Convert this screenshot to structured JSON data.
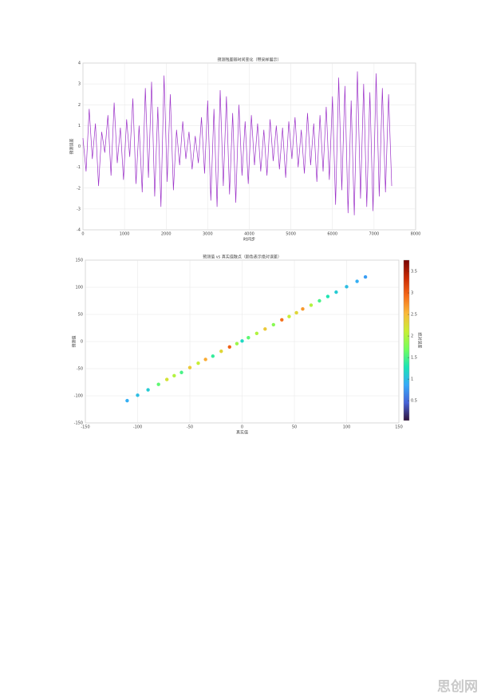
{
  "chart_data": [
    {
      "type": "line",
      "title": "预测残差随时间变化（带采样展示）",
      "xlabel": "时间步",
      "ylabel": "预测误差",
      "grid": true,
      "xlim": [
        0,
        8000
      ],
      "ylim": [
        -4,
        4
      ],
      "xticks": [
        0,
        1000,
        2000,
        3000,
        4000,
        5000,
        6000,
        7000,
        8000
      ],
      "yticks": [
        -4,
        -3,
        -2,
        -1,
        0,
        1,
        2,
        3,
        4
      ],
      "x": [
        0,
        75,
        150,
        225,
        300,
        375,
        450,
        525,
        600,
        675,
        750,
        825,
        900,
        975,
        1050,
        1125,
        1200,
        1275,
        1350,
        1425,
        1500,
        1575,
        1650,
        1725,
        1800,
        1875,
        1950,
        2025,
        2100,
        2175,
        2250,
        2325,
        2400,
        2475,
        2550,
        2625,
        2700,
        2775,
        2850,
        2925,
        3000,
        3075,
        3150,
        3225,
        3300,
        3375,
        3450,
        3525,
        3600,
        3675,
        3750,
        3825,
        3900,
        3975,
        4050,
        4125,
        4200,
        4275,
        4350,
        4425,
        4500,
        4575,
        4650,
        4725,
        4800,
        4875,
        4950,
        5025,
        5100,
        5175,
        5250,
        5325,
        5400,
        5475,
        5550,
        5625,
        5700,
        5775,
        5850,
        5925,
        6000,
        6075,
        6150,
        6225,
        6300,
        6375,
        6450,
        6525,
        6600,
        6675,
        6750,
        6825,
        6900,
        6975,
        7050,
        7125,
        7200,
        7275,
        7350,
        7425
      ],
      "series": [
        {
          "name": "预测误差",
          "color": "#9b30c8",
          "values": [
            0.4,
            -1.2,
            1.8,
            -0.6,
            1.1,
            -1.9,
            0.7,
            -0.3,
            1.5,
            -1.4,
            2.1,
            -0.8,
            0.9,
            -1.6,
            1.3,
            -0.5,
            2.3,
            -1.8,
            1.0,
            -2.2,
            2.8,
            -1.5,
            3.1,
            -2.4,
            1.9,
            -2.9,
            3.4,
            -1.7,
            2.5,
            -2.1,
            0.8,
            -0.9,
            1.2,
            -0.6,
            0.7,
            -1.1,
            0.5,
            -0.8,
            1.4,
            -1.3,
            2.2,
            -2.6,
            1.8,
            -2.9,
            2.7,
            -1.9,
            2.4,
            -2.3,
            1.6,
            -2.7,
            2.0,
            -1.4,
            1.2,
            -1.8,
            1.5,
            -0.9,
            1.1,
            -1.2,
            0.8,
            -1.4,
            1.3,
            -0.7,
            1.0,
            -1.1,
            0.9,
            -1.5,
            1.2,
            -0.6,
            1.4,
            -1.0,
            0.8,
            -1.3,
            1.6,
            -0.9,
            1.1,
            -1.7,
            1.5,
            -1.2,
            1.9,
            -1.6,
            2.4,
            -2.8,
            3.3,
            -2.1,
            2.9,
            -3.2,
            2.2,
            -3.3,
            3.6,
            -2.5,
            3.0,
            -2.9,
            2.6,
            -3.1,
            3.5,
            -2.4,
            2.8,
            -2.2,
            2.5,
            -1.9
          ]
        }
      ]
    },
    {
      "type": "scatter",
      "title": "预测值 vs 真实值散点（颜色表示绝对误差）",
      "xlabel": "真实值",
      "ylabel": "预测值",
      "colorbar_label": "绝对误差",
      "grid": true,
      "xlim": [
        -150,
        150
      ],
      "ylim": [
        -150,
        150
      ],
      "xticks": [
        -150,
        -100,
        -50,
        0,
        50,
        100,
        150
      ],
      "yticks": [
        -150,
        -100,
        -50,
        0,
        50,
        100,
        150
      ],
      "clim": [
        0.04,
        3.76
      ],
      "cticks": [
        0.5,
        1,
        1.5,
        2,
        2.5,
        3,
        3.5
      ],
      "colormap": [
        "#30123b",
        "#4662d7",
        "#36aaf9",
        "#1ae4b6",
        "#72fe5e",
        "#c7ef34",
        "#faba39",
        "#f66b19",
        "#ca2a04",
        "#7a0403"
      ],
      "x": [
        -110,
        -100,
        -90,
        -80,
        -72,
        -65,
        -58,
        -50,
        -42,
        -35,
        -28,
        -20,
        -12,
        -5,
        0,
        6,
        14,
        22,
        30,
        38,
        45,
        52,
        58,
        66,
        74,
        82,
        90,
        100,
        110,
        118
      ],
      "values": [
        -109,
        -99,
        -89,
        -79,
        -70,
        -63,
        -57,
        -48,
        -40,
        -33,
        -27,
        -18,
        -10,
        -4,
        1,
        7,
        15,
        23,
        31,
        40,
        46,
        53,
        60,
        67,
        75,
        83,
        91,
        101,
        111,
        119
      ],
      "c": [
        0.9,
        1.0,
        1.1,
        1.6,
        2.2,
        2.0,
        1.5,
        2.4,
        2.1,
        2.6,
        1.4,
        2.3,
        3.0,
        1.9,
        1.2,
        1.6,
        2.0,
        2.4,
        1.8,
        2.9,
        2.1,
        2.3,
        2.7,
        2.0,
        1.5,
        1.3,
        1.1,
        1.0,
        0.9,
        0.8
      ]
    }
  ],
  "watermark": "思创网"
}
